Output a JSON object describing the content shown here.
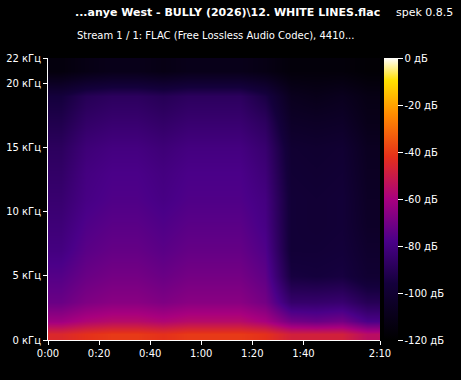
{
  "chart_data": {
    "type": "heatmap",
    "title": "...anye West - BULLY (2026)\\12. WHITE LINES.flac",
    "subtitle": "Stream 1 / 1: FLAC (Free Lossless Audio Codec), 4410...",
    "annotations": [
      "spek 0.8.5"
    ],
    "x": [
      5,
      15,
      25,
      35,
      45,
      55,
      65,
      75,
      85,
      95,
      105,
      115,
      125
    ],
    "y": [
      0.5,
      1.5,
      3,
      5,
      7,
      9,
      11,
      13,
      15,
      17,
      19,
      21
    ],
    "cells": [
      [
        -45,
        -42,
        -40,
        -40,
        -42,
        -40,
        -40,
        -40,
        -42,
        -48,
        -48,
        -48,
        -55
      ],
      [
        -62,
        -58,
        -56,
        -56,
        -58,
        -56,
        -56,
        -56,
        -60,
        -70,
        -72,
        -70,
        -78
      ],
      [
        -72,
        -68,
        -66,
        -66,
        -68,
        -66,
        -66,
        -66,
        -70,
        -85,
        -85,
        -84,
        -90
      ],
      [
        -76,
        -72,
        -70,
        -70,
        -72,
        -70,
        -70,
        -70,
        -74,
        -95,
        -96,
        -95,
        -100
      ],
      [
        -80,
        -75,
        -73,
        -73,
        -75,
        -73,
        -73,
        -73,
        -77,
        -98,
        -98,
        -97,
        -102
      ],
      [
        -82,
        -77,
        -75,
        -75,
        -77,
        -75,
        -75,
        -75,
        -79,
        -98,
        -99,
        -98,
        -104
      ],
      [
        -84,
        -79,
        -77,
        -77,
        -79,
        -77,
        -77,
        -77,
        -80,
        -98,
        -99,
        -98,
        -105
      ],
      [
        -86,
        -80,
        -78,
        -78,
        -80,
        -78,
        -78,
        -78,
        -82,
        -99,
        -100,
        -99,
        -106
      ],
      [
        -88,
        -82,
        -80,
        -80,
        -82,
        -80,
        -80,
        -80,
        -84,
        -100,
        -101,
        -100,
        -107
      ],
      [
        -92,
        -86,
        -84,
        -84,
        -86,
        -84,
        -84,
        -84,
        -88,
        -104,
        -105,
        -104,
        -110
      ],
      [
        -96,
        -90,
        -88,
        -88,
        -90,
        -88,
        -88,
        -88,
        -94,
        -108,
        -110,
        -108,
        -112
      ],
      [
        -115,
        -112,
        -110,
        -110,
        -112,
        -110,
        -110,
        -110,
        -112,
        -116,
        -116,
        -116,
        -118
      ]
    ],
    "xlim": [
      0,
      130
    ],
    "ylim": [
      0,
      22
    ],
    "xticks": [
      {
        "value": 0,
        "label": "0:00"
      },
      {
        "value": 20,
        "label": "0:20"
      },
      {
        "value": 40,
        "label": "0:40"
      },
      {
        "value": 60,
        "label": "1:00"
      },
      {
        "value": 80,
        "label": "1:20"
      },
      {
        "value": 100,
        "label": "1:40"
      },
      {
        "value": 130,
        "label": "2:10"
      }
    ],
    "yticks": [
      {
        "value": 0,
        "label": "0 кГц"
      },
      {
        "value": 5,
        "label": "5 кГц"
      },
      {
        "value": 10,
        "label": "10 кГц"
      },
      {
        "value": 15,
        "label": "15 кГц"
      },
      {
        "value": 20,
        "label": "20 кГц"
      },
      {
        "value": 22,
        "label": "22 кГц"
      }
    ],
    "colorbar_range": [
      -120,
      0
    ],
    "colorbar_ticks": [
      {
        "value": 0,
        "label": "0 дБ"
      },
      {
        "value": -20,
        "label": "-20 дБ"
      },
      {
        "value": -40,
        "label": "-40 дБ"
      },
      {
        "value": -60,
        "label": "-60 дБ"
      },
      {
        "value": -80,
        "label": "-80 дБ"
      },
      {
        "value": -100,
        "label": "-100 дБ"
      },
      {
        "value": -120,
        "label": "-120 дБ"
      }
    ]
  }
}
